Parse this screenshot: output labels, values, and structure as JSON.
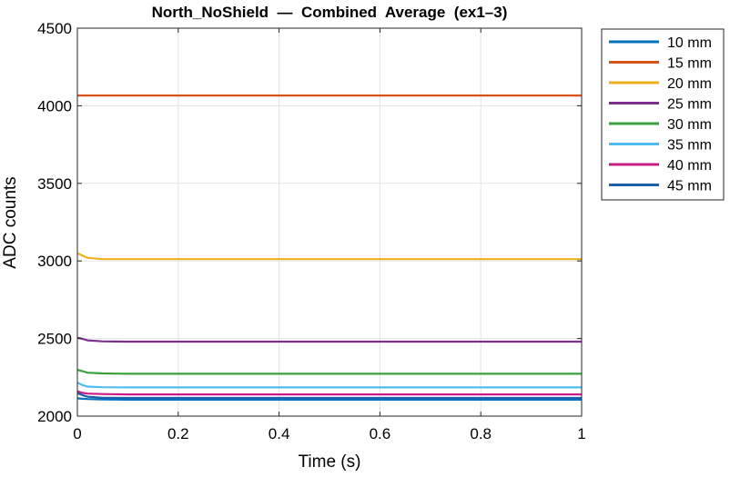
{
  "chart_data": {
    "type": "line",
    "title": "North_NoShield  —  Combined  Average  (ex1–3)",
    "xlabel": "Time (s)",
    "ylabel": "ADC counts",
    "xlim": [
      0,
      1
    ],
    "ylim": [
      2000,
      4500
    ],
    "xticks": [
      0,
      0.2,
      0.4,
      0.6,
      0.8,
      1
    ],
    "xtick_labels": [
      "0",
      "0.2",
      "0.4",
      "0.6",
      "0.8",
      "1"
    ],
    "yticks": [
      2000,
      2500,
      3000,
      3500,
      4000,
      4500
    ],
    "ytick_labels": [
      "2000",
      "2500",
      "3000",
      "3500",
      "4000",
      "4500"
    ],
    "grid": true,
    "legend_position": "outside-right",
    "series": [
      {
        "name": "10 mm",
        "color": "#0072bd",
        "x": [
          0,
          0.01,
          0.02,
          0.05,
          0.1,
          0.3,
          0.5,
          0.7,
          0.9,
          1
        ],
        "y": [
          2115,
          2112,
          2110,
          2108,
          2106,
          2106,
          2106,
          2106,
          2106,
          2106
        ]
      },
      {
        "name": "15 mm",
        "color": "#d95319",
        "x": [
          0,
          0.01,
          0.02,
          0.05,
          0.1,
          0.3,
          0.5,
          0.7,
          0.9,
          1
        ],
        "y": [
          4066,
          4066,
          4066,
          4066,
          4066,
          4066,
          4066,
          4066,
          4066,
          4066
        ]
      },
      {
        "name": "20 mm",
        "color": "#edb120",
        "x": [
          0,
          0.01,
          0.02,
          0.05,
          0.1,
          0.3,
          0.5,
          0.7,
          0.9,
          1
        ],
        "y": [
          3050,
          3035,
          3020,
          3012,
          3012,
          3012,
          3012,
          3012,
          3012,
          3012
        ]
      },
      {
        "name": "25 mm",
        "color": "#7e2f8e",
        "x": [
          0,
          0.01,
          0.02,
          0.05,
          0.1,
          0.3,
          0.5,
          0.7,
          0.9,
          1
        ],
        "y": [
          2505,
          2498,
          2488,
          2482,
          2480,
          2480,
          2480,
          2480,
          2480,
          2480
        ]
      },
      {
        "name": "30 mm",
        "color": "#3ba23b",
        "x": [
          0,
          0.01,
          0.02,
          0.05,
          0.1,
          0.3,
          0.5,
          0.7,
          0.9,
          1
        ],
        "y": [
          2298,
          2290,
          2280,
          2275,
          2273,
          2273,
          2273,
          2273,
          2273,
          2273
        ]
      },
      {
        "name": "35 mm",
        "color": "#4dbeee",
        "x": [
          0,
          0.01,
          0.02,
          0.05,
          0.1,
          0.3,
          0.5,
          0.7,
          0.9,
          1
        ],
        "y": [
          2215,
          2200,
          2190,
          2186,
          2185,
          2185,
          2185,
          2185,
          2185,
          2185
        ]
      },
      {
        "name": "40 mm",
        "color": "#cc1b86",
        "x": [
          0,
          0.01,
          0.02,
          0.05,
          0.1,
          0.3,
          0.5,
          0.7,
          0.9,
          1
        ],
        "y": [
          2160,
          2150,
          2145,
          2142,
          2140,
          2140,
          2140,
          2140,
          2140,
          2140
        ]
      },
      {
        "name": "45 mm",
        "color": "#1f5ea8",
        "x": [
          0,
          0.01,
          0.02,
          0.05,
          0.1,
          0.3,
          0.5,
          0.7,
          0.9,
          1
        ],
        "y": [
          2148,
          2135,
          2125,
          2118,
          2117,
          2117,
          2117,
          2117,
          2117,
          2117
        ]
      }
    ]
  }
}
